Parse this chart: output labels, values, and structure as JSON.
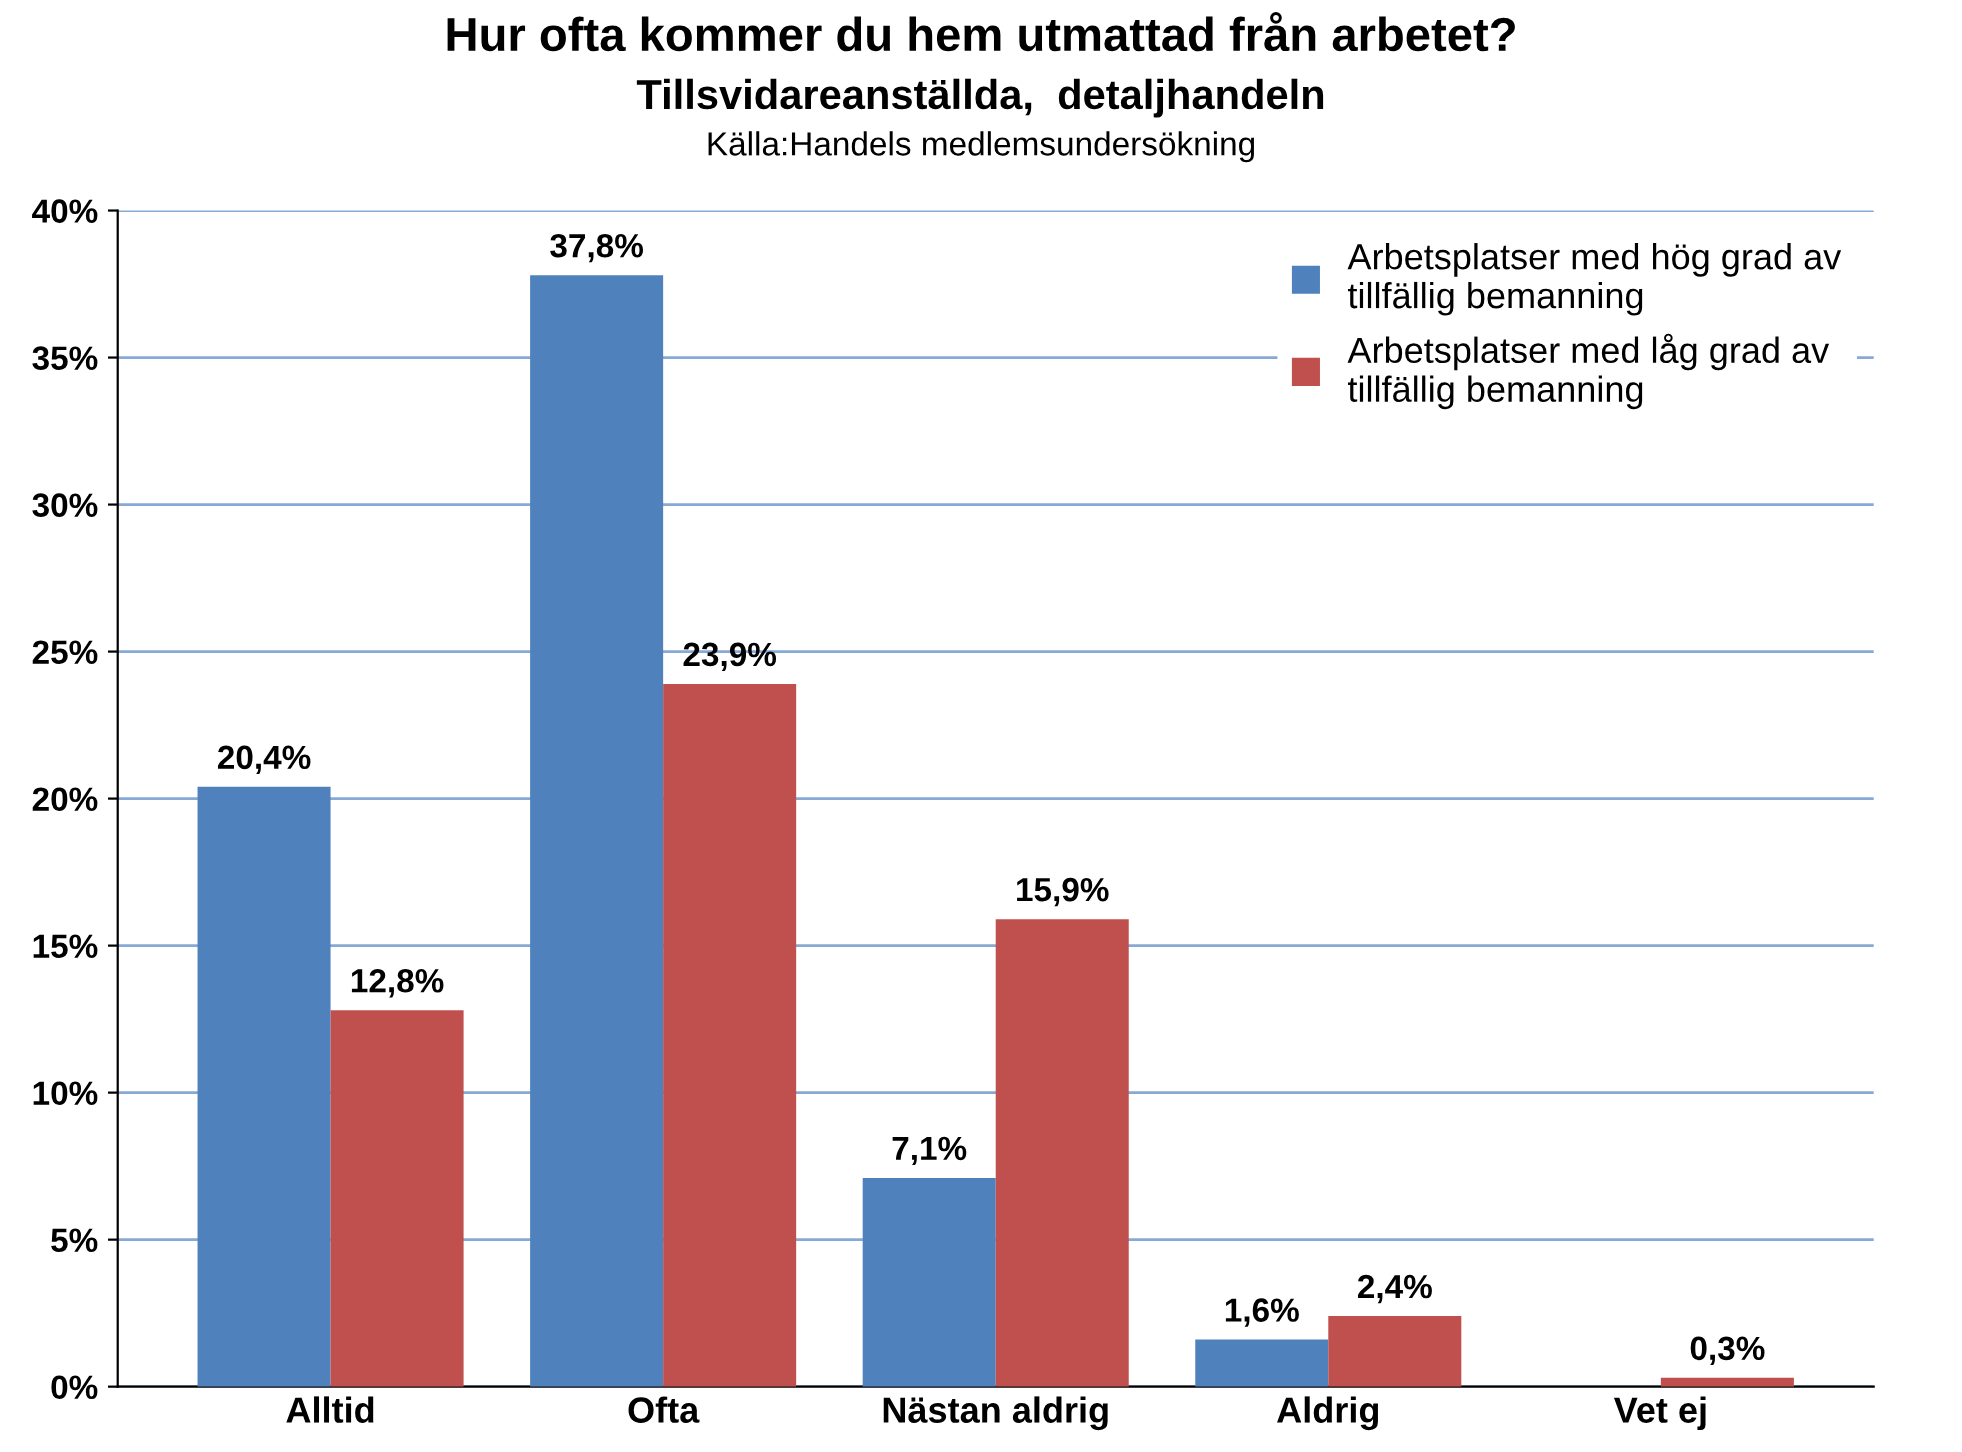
{
  "chart_data": {
    "type": "bar",
    "title": "Hur ofta kommer du hem utmattad från arbetet?",
    "subtitle": "Tillsvidareanställda,  detaljhandeln",
    "annotations": [
      "Källa:Handels medlemsundersökning"
    ],
    "categories": [
      "Alltid",
      "Ofta",
      "Nästan aldrig",
      "Aldrig",
      "Vet ej"
    ],
    "series": [
      {
        "name": "Arbetsplatser med hög grad av tillfällig bemanning",
        "color": "#4f81bd",
        "values": [
          20.4,
          37.8,
          7.1,
          1.6,
          null
        ],
        "value_labels": [
          "20,4%",
          "37,8%",
          "7,1%",
          "1,6%",
          null
        ]
      },
      {
        "name": "Arbetsplatser med låg grad av tillfällig bemanning",
        "color": "#c0504d",
        "values": [
          12.8,
          23.9,
          15.9,
          2.4,
          0.3
        ],
        "value_labels": [
          "12,8%",
          "23,9%",
          "15,9%",
          "2,4%",
          "0,3%"
        ]
      }
    ],
    "ylim": [
      0,
      40
    ],
    "yticks": [
      {
        "value": 0,
        "label": "0%"
      },
      {
        "value": 5,
        "label": "5%"
      },
      {
        "value": 10,
        "label": "10%"
      },
      {
        "value": 15,
        "label": "15%"
      },
      {
        "value": 20,
        "label": "20%"
      },
      {
        "value": 25,
        "label": "25%"
      },
      {
        "value": 30,
        "label": "30%"
      },
      {
        "value": 35,
        "label": "35%"
      },
      {
        "value": 40,
        "label": "40%"
      }
    ],
    "grid": "y",
    "legend": "top right"
  }
}
